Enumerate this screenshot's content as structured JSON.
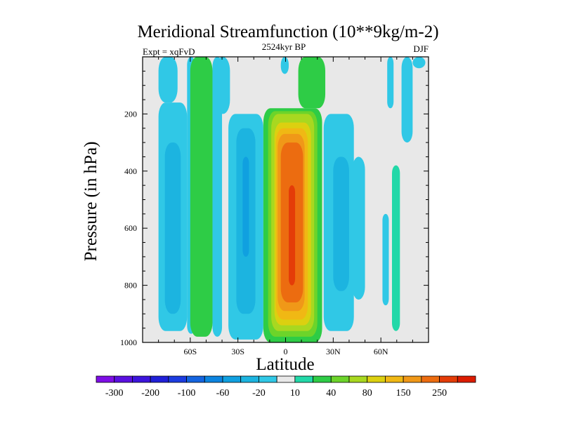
{
  "chart_data": {
    "type": "heatmap",
    "title": "Meridional Streamfunction (10**9kg/m-2)",
    "left_label": "Expt = xqFvD",
    "center_label": "2524kyr BP",
    "right_label": "DJF",
    "xlabel": "Latitude",
    "ylabel": "Pressure (in hPa)",
    "xlim": [
      -90,
      90
    ],
    "ylim": [
      1000,
      0
    ],
    "x_ticks": [
      {
        "value": -60,
        "label": "60S"
      },
      {
        "value": -30,
        "label": "30S"
      },
      {
        "value": 0,
        "label": "0"
      },
      {
        "value": 30,
        "label": "30N"
      },
      {
        "value": 60,
        "label": "60N"
      }
    ],
    "y_ticks": [
      {
        "value": 200,
        "label": "200"
      },
      {
        "value": 400,
        "label": "400"
      },
      {
        "value": 600,
        "label": "600"
      },
      {
        "value": 800,
        "label": "800"
      },
      {
        "value": 1000,
        "label": "1000"
      }
    ],
    "colorbar": {
      "levels": [
        -300,
        -250,
        -200,
        -150,
        -100,
        -80,
        -60,
        -40,
        -20,
        -10,
        10,
        20,
        40,
        60,
        80,
        100,
        150,
        200,
        250,
        300
      ],
      "labels": [
        "-300",
        "-200",
        "-100",
        "-60",
        "-20",
        "10",
        "40",
        "80",
        "150",
        "250"
      ],
      "colors": [
        "#7e0ee6",
        "#5a10e0",
        "#3c14dc",
        "#2020d8",
        "#1c3ce0",
        "#1464e0",
        "#0c84e0",
        "#10a0e0",
        "#1cb4e0",
        "#30c8e6",
        "#e8e8e8",
        "#22d8a8",
        "#2ecc46",
        "#6cd42a",
        "#a8d820",
        "#dcd010",
        "#f0b814",
        "#f09818",
        "#ec6c10",
        "#e43c08",
        "#dc1c00"
      ]
    },
    "field": {
      "background": "#e8e8e8",
      "cells": [
        {
          "x0": -80,
          "x1": -68,
          "p0": 0,
          "p1": 160,
          "level": 9
        },
        {
          "x0": -80,
          "x1": -62,
          "p0": 160,
          "p1": 960,
          "level": 9
        },
        {
          "x0": -76,
          "x1": -66,
          "p0": 300,
          "p1": 900,
          "level": 8
        },
        {
          "x0": -62,
          "x1": -57,
          "p0": 0,
          "p1": 970,
          "level": 9
        },
        {
          "x0": -60,
          "x1": -46,
          "p0": 0,
          "p1": 980,
          "level": 12
        },
        {
          "x0": -46,
          "x1": -40,
          "p0": 0,
          "p1": 980,
          "level": 9
        },
        {
          "x0": -44,
          "x1": -35,
          "p0": 0,
          "p1": 200,
          "level": 9
        },
        {
          "x0": -36,
          "x1": -14,
          "p0": 200,
          "p1": 990,
          "level": 9
        },
        {
          "x0": -31,
          "x1": -19,
          "p0": 250,
          "p1": 900,
          "level": 8
        },
        {
          "x0": -27,
          "x1": -23,
          "p0": 350,
          "p1": 700,
          "level": 7
        },
        {
          "x0": -14,
          "x1": 23,
          "p0": 180,
          "p1": 1000,
          "level": 12
        },
        {
          "x0": 8,
          "x1": 25,
          "p0": 0,
          "p1": 180,
          "level": 12
        },
        {
          "x0": -11,
          "x1": 20,
          "p0": 190,
          "p1": 980,
          "level": 13
        },
        {
          "x0": -9,
          "x1": 18,
          "p0": 200,
          "p1": 960,
          "level": 14
        },
        {
          "x0": -7,
          "x1": 16,
          "p0": 230,
          "p1": 940,
          "level": 15
        },
        {
          "x0": -6,
          "x1": 14,
          "p0": 250,
          "p1": 920,
          "level": 16
        },
        {
          "x0": -5,
          "x1": 12,
          "p0": 270,
          "p1": 890,
          "level": 17
        },
        {
          "x0": -3,
          "x1": 11,
          "p0": 300,
          "p1": 860,
          "level": 18
        },
        {
          "x0": 2,
          "x1": 6,
          "p0": 450,
          "p1": 800,
          "level": 19
        },
        {
          "x0": 24,
          "x1": 43,
          "p0": 200,
          "p1": 960,
          "level": 9
        },
        {
          "x0": 30,
          "x1": 40,
          "p0": 350,
          "p1": 820,
          "level": 8
        },
        {
          "x0": 42,
          "x1": 50,
          "p0": 350,
          "p1": 850,
          "level": 9
        },
        {
          "x0": -3,
          "x1": 2,
          "p0": 0,
          "p1": 60,
          "level": 9
        },
        {
          "x0": 61,
          "x1": 65,
          "p0": 550,
          "p1": 870,
          "level": 9
        },
        {
          "x0": 67,
          "x1": 72,
          "p0": 380,
          "p1": 960,
          "level": 11
        },
        {
          "x0": 64,
          "x1": 68,
          "p0": 0,
          "p1": 180,
          "level": 9
        },
        {
          "x0": 73,
          "x1": 80,
          "p0": 0,
          "p1": 300,
          "level": 9
        },
        {
          "x0": 80,
          "x1": 88,
          "p0": 0,
          "p1": 40,
          "level": 9
        }
      ]
    }
  }
}
